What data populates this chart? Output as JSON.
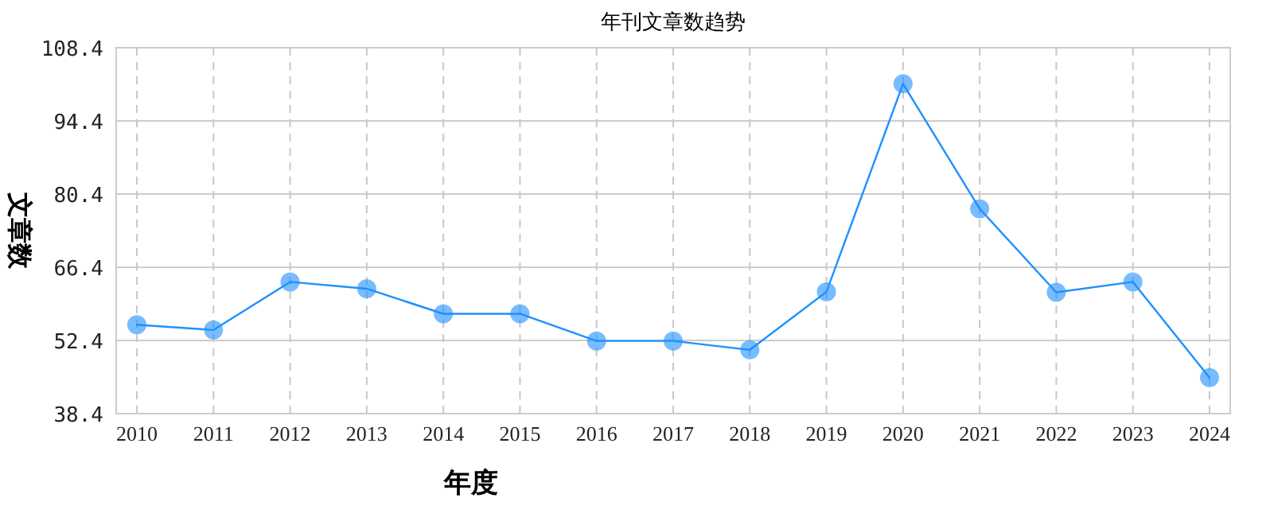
{
  "chart_data": {
    "type": "line",
    "title": "年刊文章数趋势",
    "xlabel": "年度",
    "ylabel": "文章数",
    "categories": [
      "2010",
      "2011",
      "2012",
      "2013",
      "2014",
      "2015",
      "2016",
      "2017",
      "2018",
      "2019",
      "2020",
      "2021",
      "2022",
      "2023",
      "2024"
    ],
    "series": [
      {
        "color": "#1e90ff",
        "values": [
          55.4,
          54.4,
          63.6,
          62.3,
          57.5,
          57.5,
          52.3,
          52.3,
          50.6,
          61.7,
          101.5,
          77.6,
          61.6,
          63.6,
          45.3
        ]
      }
    ],
    "ylim": [
      38.4,
      108.4
    ],
    "yticks": [
      38.4,
      52.4,
      66.4,
      80.4,
      94.4,
      108.4
    ],
    "grid": true,
    "marker": "circle",
    "line_style": "solid"
  }
}
